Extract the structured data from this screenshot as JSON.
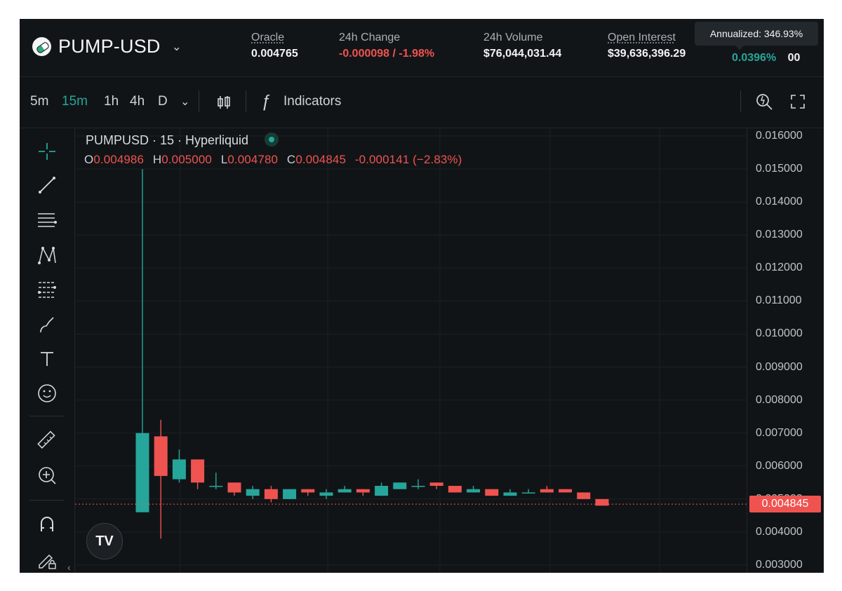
{
  "header": {
    "market": "PUMP-USD",
    "market_chevron_icon": "chevron-down-icon",
    "stats": [
      {
        "label": "Oracle",
        "value": "0.004765",
        "underline": true
      },
      {
        "label": "24h Change",
        "value": "-0.000098 / -1.98%",
        "underline": false
      },
      {
        "label": "24h Volume",
        "value": "$76,044,031.44",
        "underline": false
      },
      {
        "label": "Open Interest",
        "value": "$39,636,396.29",
        "underline": true
      }
    ],
    "funding": {
      "value": "0.0396%",
      "tail": "00"
    },
    "tooltip": "Annualized: 346.93%"
  },
  "toolbar": {
    "timeframes": [
      "5m",
      "15m",
      "1h",
      "4h",
      "D"
    ],
    "active_timeframe": "15m",
    "indicators_label": "Indicators",
    "icons": [
      "chevron-down-icon",
      "candles-icon",
      "fx-icon",
      "search-settings-icon",
      "fullscreen-icon"
    ]
  },
  "legend": {
    "title": "PUMPUSD · 15 · Hyperliquid",
    "open_label": "O",
    "open": "0.004986",
    "high_label": "H",
    "high": "0.005000",
    "low_label": "L",
    "low": "0.004780",
    "close_label": "C",
    "close": "0.004845",
    "change": "-0.000141 (−2.83%)"
  },
  "left_tools": [
    "crosshair-icon",
    "trendline-icon",
    "horizontal-lines-icon",
    "pattern-icon",
    "fib-levels-icon",
    "brush-icon",
    "text-icon",
    "emoji-icon",
    "ruler-icon",
    "zoom-in-icon",
    "magnet-icon",
    "lock-pencil-icon"
  ],
  "chart_data": {
    "type": "candlestick",
    "y_ticks": [
      "0.016000",
      "0.015000",
      "0.014000",
      "0.013000",
      "0.012000",
      "0.011000",
      "0.010000",
      "0.009000",
      "0.008000",
      "0.007000",
      "0.006000",
      "0.005000",
      "0.004000",
      "0.003000"
    ],
    "ylim": [
      0.003,
      0.016
    ],
    "current_price": "0.004845",
    "candles": [
      {
        "o": 0.0046,
        "h": 0.015,
        "l": 0.0046,
        "c": 0.007
      },
      {
        "o": 0.0069,
        "h": 0.0074,
        "l": 0.0038,
        "c": 0.0057
      },
      {
        "o": 0.0056,
        "h": 0.0065,
        "l": 0.0055,
        "c": 0.0062
      },
      {
        "o": 0.0062,
        "h": 0.0062,
        "l": 0.0053,
        "c": 0.0055
      },
      {
        "o": 0.0054,
        "h": 0.0058,
        "l": 0.0053,
        "c": 0.0054
      },
      {
        "o": 0.0055,
        "h": 0.0055,
        "l": 0.0051,
        "c": 0.0052
      },
      {
        "o": 0.0051,
        "h": 0.0054,
        "l": 0.005,
        "c": 0.0053
      },
      {
        "o": 0.0053,
        "h": 0.0054,
        "l": 0.0049,
        "c": 0.005
      },
      {
        "o": 0.005,
        "h": 0.0053,
        "l": 0.005,
        "c": 0.0053
      },
      {
        "o": 0.0053,
        "h": 0.0053,
        "l": 0.0051,
        "c": 0.0052
      },
      {
        "o": 0.0051,
        "h": 0.0053,
        "l": 0.005,
        "c": 0.0052
      },
      {
        "o": 0.0052,
        "h": 0.0054,
        "l": 0.0052,
        "c": 0.0053
      },
      {
        "o": 0.0053,
        "h": 0.0053,
        "l": 0.0051,
        "c": 0.0052
      },
      {
        "o": 0.0051,
        "h": 0.0055,
        "l": 0.0051,
        "c": 0.0054
      },
      {
        "o": 0.0053,
        "h": 0.0055,
        "l": 0.0053,
        "c": 0.0055
      },
      {
        "o": 0.0054,
        "h": 0.0056,
        "l": 0.0053,
        "c": 0.0054
      },
      {
        "o": 0.0055,
        "h": 0.0055,
        "l": 0.0053,
        "c": 0.0054
      },
      {
        "o": 0.0054,
        "h": 0.0054,
        "l": 0.0052,
        "c": 0.0052
      },
      {
        "o": 0.0052,
        "h": 0.0054,
        "l": 0.0052,
        "c": 0.0053
      },
      {
        "o": 0.0053,
        "h": 0.0053,
        "l": 0.0051,
        "c": 0.0051
      },
      {
        "o": 0.0051,
        "h": 0.0053,
        "l": 0.0051,
        "c": 0.0052
      },
      {
        "o": 0.0052,
        "h": 0.0053,
        "l": 0.0052,
        "c": 0.0052
      },
      {
        "o": 0.0053,
        "h": 0.0054,
        "l": 0.0052,
        "c": 0.0052
      },
      {
        "o": 0.0053,
        "h": 0.0053,
        "l": 0.0052,
        "c": 0.0052
      },
      {
        "o": 0.0052,
        "h": 0.0052,
        "l": 0.005,
        "c": 0.005
      },
      {
        "o": 0.005,
        "h": 0.005,
        "l": 0.0048,
        "c": 0.0048
      }
    ]
  },
  "colors": {
    "background": "#111417",
    "up": "#26a69a",
    "down": "#ef5350",
    "grid": "#1b2025",
    "axis_text": "#bec4cb"
  }
}
